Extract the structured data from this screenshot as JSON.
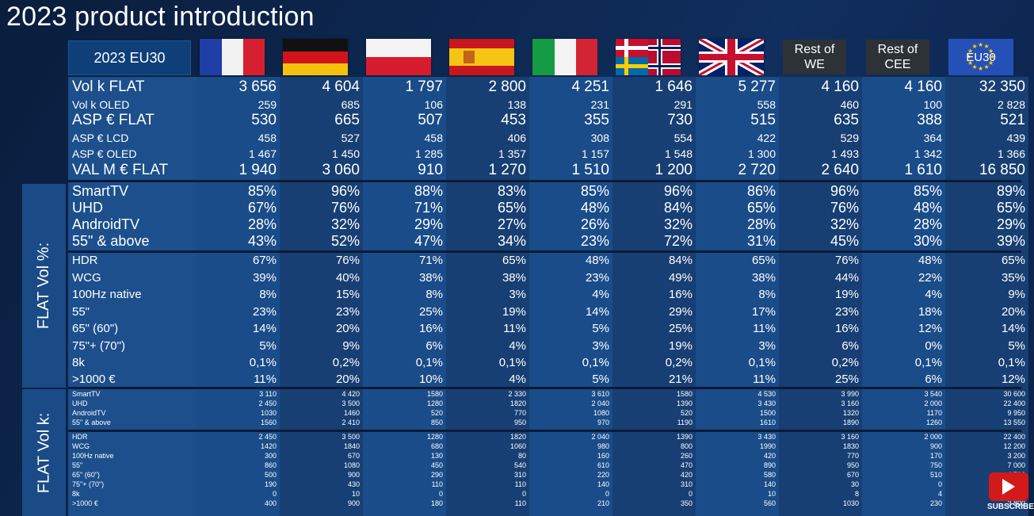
{
  "title": "2023 product introduction",
  "header_label": "2023 EU30",
  "columns": [
    "France",
    "Germany",
    "Poland",
    "Spain",
    "Italy",
    "Nordics",
    "UK",
    "Rest of WE",
    "Rest of CEE",
    "EU30"
  ],
  "region_boxes": {
    "rest_we": [
      "Rest of",
      "WE"
    ],
    "rest_cee": [
      "Rest of",
      "CEE"
    ],
    "eu30": "EU30"
  },
  "side_labels": {
    "vol_pct": "FLAT Vol %:",
    "vol_k": "FLAT Vol k:"
  },
  "section_main": [
    {
      "label": "Vol k FLAT",
      "values": [
        "3 656",
        "4 604",
        "1 797",
        "2 800",
        "4 251",
        "1 646",
        "5 277",
        "4 160",
        "4 160",
        "32 350"
      ],
      "style": "big"
    },
    {
      "label": "Vol k OLED",
      "values": [
        "259",
        "685",
        "106",
        "138",
        "231",
        "291",
        "558",
        "460",
        "100",
        "2 828"
      ],
      "style": "small"
    },
    {
      "label": "ASP € FLAT",
      "values": [
        "530",
        "665",
        "507",
        "453",
        "355",
        "730",
        "515",
        "635",
        "388",
        "521"
      ],
      "style": "big"
    },
    {
      "label": "ASP € LCD",
      "values": [
        "458",
        "527",
        "458",
        "406",
        "308",
        "554",
        "422",
        "529",
        "364",
        "439"
      ],
      "style": "small"
    },
    {
      "label": "ASP € OLED",
      "values": [
        "1 467",
        "1 450",
        "1 285",
        "1 357",
        "1 157",
        "1 548",
        "1 300",
        "1 493",
        "1 342",
        "1 366"
      ],
      "style": "small"
    },
    {
      "label": "VAL M € FLAT",
      "values": [
        "1 940",
        "3 060",
        "910",
        "1 270",
        "1 510",
        "1 200",
        "2 720",
        "2 640",
        "1 610",
        "16 850"
      ],
      "style": "big"
    }
  ],
  "section_pct_a": [
    {
      "label": "SmartTV",
      "values": [
        "85%",
        "96%",
        "88%",
        "83%",
        "85%",
        "96%",
        "86%",
        "96%",
        "85%",
        "89%"
      ]
    },
    {
      "label": "UHD",
      "values": [
        "67%",
        "76%",
        "71%",
        "65%",
        "48%",
        "84%",
        "65%",
        "76%",
        "48%",
        "65%"
      ]
    },
    {
      "label": "AndroidTV",
      "values": [
        "28%",
        "32%",
        "29%",
        "27%",
        "26%",
        "32%",
        "28%",
        "32%",
        "28%",
        "29%"
      ]
    },
    {
      "label": "55\" & above",
      "values": [
        "43%",
        "52%",
        "47%",
        "34%",
        "23%",
        "72%",
        "31%",
        "45%",
        "30%",
        "39%"
      ]
    }
  ],
  "section_pct_b": [
    {
      "label": "HDR",
      "values": [
        "67%",
        "76%",
        "71%",
        "65%",
        "48%",
        "84%",
        "65%",
        "76%",
        "48%",
        "65%"
      ]
    },
    {
      "label": "WCG",
      "values": [
        "39%",
        "40%",
        "38%",
        "38%",
        "23%",
        "49%",
        "38%",
        "44%",
        "22%",
        "35%"
      ]
    },
    {
      "label": "100Hz native",
      "values": [
        "8%",
        "15%",
        "8%",
        "3%",
        "4%",
        "16%",
        "8%",
        "19%",
        "4%",
        "9%"
      ]
    },
    {
      "label": "55\"",
      "values": [
        "23%",
        "23%",
        "25%",
        "19%",
        "14%",
        "29%",
        "17%",
        "23%",
        "18%",
        "20%"
      ]
    },
    {
      "label": "65\" (60\")",
      "values": [
        "14%",
        "20%",
        "16%",
        "11%",
        "5%",
        "25%",
        "11%",
        "16%",
        "12%",
        "14%"
      ]
    },
    {
      "label": "75\"+ (70\")",
      "values": [
        "5%",
        "9%",
        "6%",
        "4%",
        "3%",
        "19%",
        "3%",
        "6%",
        "0%",
        "5%"
      ]
    },
    {
      "label": "8k",
      "values": [
        "0,1%",
        "0,2%",
        "0,1%",
        "0,1%",
        "0,1%",
        "0,2%",
        "0,1%",
        "0,2%",
        "0,1%",
        "0,1%"
      ]
    },
    {
      "label": ">1000 €",
      "values": [
        "11%",
        "20%",
        "10%",
        "4%",
        "5%",
        "21%",
        "11%",
        "25%",
        "6%",
        "12%"
      ]
    }
  ],
  "section_k_a": [
    {
      "label": "SmartTV",
      "values": [
        "3 110",
        "4 420",
        "1580",
        "2 330",
        "3 610",
        "1580",
        "4 530",
        "3 990",
        "3 540",
        "30 600"
      ]
    },
    {
      "label": "UHD",
      "values": [
        "2 450",
        "3 500",
        "1280",
        "1820",
        "2 040",
        "1390",
        "3 430",
        "3 160",
        "2 000",
        "22 400"
      ]
    },
    {
      "label": "AndroidTV",
      "values": [
        "1030",
        "1460",
        "520",
        "770",
        "1080",
        "520",
        "1500",
        "1320",
        "1170",
        "9 950"
      ]
    },
    {
      "label": "55\" & above",
      "values": [
        "1560",
        "2 410",
        "850",
        "950",
        "970",
        "1190",
        "1610",
        "1890",
        "1260",
        "13 550"
      ]
    }
  ],
  "section_k_b": [
    {
      "label": "HDR",
      "values": [
        "2 450",
        "3 500",
        "1280",
        "1820",
        "2 040",
        "1390",
        "3 430",
        "3 160",
        "2 000",
        "22 400"
      ]
    },
    {
      "label": "WCG",
      "values": [
        "1420",
        "1840",
        "680",
        "1060",
        "980",
        "800",
        "1990",
        "1830",
        "900",
        "12 200"
      ]
    },
    {
      "label": "100Hz native",
      "values": [
        "300",
        "670",
        "130",
        "80",
        "160",
        "260",
        "420",
        "770",
        "170",
        "3 200"
      ]
    },
    {
      "label": "55\"",
      "values": [
        "860",
        "1080",
        "450",
        "540",
        "610",
        "470",
        "890",
        "950",
        "750",
        "7 000"
      ]
    },
    {
      "label": "65\" (60\")",
      "values": [
        "500",
        "900",
        "290",
        "310",
        "220",
        "420",
        "580",
        "670",
        "510",
        "4 500"
      ]
    },
    {
      "label": "75\"+ (70\")",
      "values": [
        "190",
        "430",
        "110",
        "110",
        "140",
        "310",
        "140",
        "30",
        "0",
        "1 700"
      ]
    },
    {
      "label": "8k",
      "values": [
        "0",
        "10",
        "0",
        "0",
        "0",
        "0",
        "10",
        "8",
        "4",
        "40"
      ]
    },
    {
      "label": ">1000 €",
      "values": [
        "400",
        "900",
        "180",
        "110",
        "210",
        "350",
        "560",
        "1030",
        "230",
        "3 800"
      ]
    }
  ],
  "subscribe_label": "SUBSCRIBE"
}
